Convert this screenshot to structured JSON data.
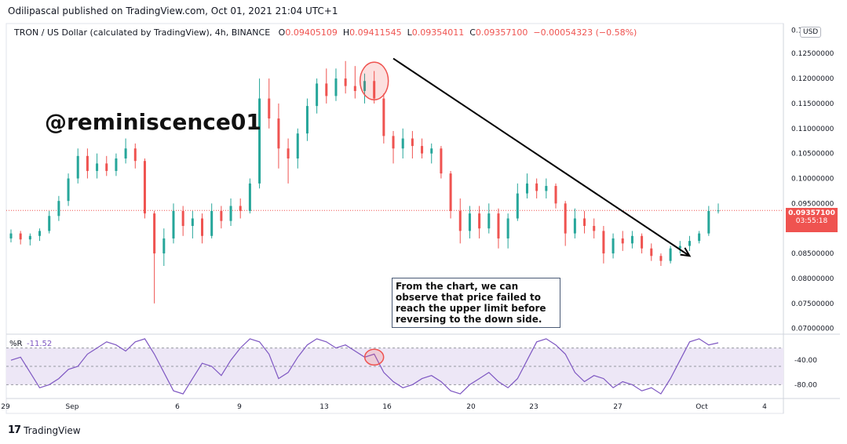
{
  "header": {
    "published_by": "Odilipascal published on TradingView.com, Oct 01, 2021 21:04 UTC+1"
  },
  "instrument": {
    "name": "TRON / US Dollar (calculated by TradingView), 4h, BINANCE",
    "open_label": "O",
    "open": "0.09405109",
    "high_label": "H",
    "high": "0.09411545",
    "low_label": "L",
    "low": "0.09354011",
    "close_label": "C",
    "close": "0.09357100",
    "change": "−0.00054323 (−0.58%)"
  },
  "watermark": "@reminiscence01",
  "annotation": "From the chart, we can observe that price failed to reach the upper limit before reversing to the down side.",
  "currency_badge": "USD",
  "last_price": {
    "price": "0.09357100",
    "countdown": "03:55:18"
  },
  "indicator": {
    "name": "%R",
    "value": "-11.52"
  },
  "footer": {
    "brand": "TradingView"
  },
  "colors": {
    "up": "#26a69a",
    "down": "#ef5350",
    "indicator_line": "#7e57c2",
    "indicator_band": "#ede7f6"
  },
  "chart_data": {
    "type": "candlestick",
    "symbol": "TRXUSD",
    "timeframe": "4h",
    "x_ticks": [
      "29",
      "Sep",
      "6",
      "9",
      "13",
      "16",
      "20",
      "23",
      "27",
      "Oct",
      "4"
    ],
    "y_ticks": [
      "0.12500000",
      "0.12000000",
      "0.11500000",
      "0.11000000",
      "0.10500000",
      "0.10000000",
      "0.09500000",
      "0.09000000",
      "0.08500000",
      "0.08000000",
      "0.07500000",
      "0.07000000"
    ],
    "top_tick_partial": "0.1",
    "ylim": [
      0.069,
      0.131
    ],
    "candles": [
      {
        "o": 0.088,
        "h": 0.0898,
        "l": 0.0872,
        "c": 0.089
      },
      {
        "o": 0.089,
        "h": 0.0895,
        "l": 0.0868,
        "c": 0.0878
      },
      {
        "o": 0.0878,
        "h": 0.089,
        "l": 0.0866,
        "c": 0.0885
      },
      {
        "o": 0.0885,
        "h": 0.09,
        "l": 0.0875,
        "c": 0.0895
      },
      {
        "o": 0.0895,
        "h": 0.0935,
        "l": 0.089,
        "c": 0.0925
      },
      {
        "o": 0.0925,
        "h": 0.0965,
        "l": 0.0915,
        "c": 0.0955
      },
      {
        "o": 0.0955,
        "h": 0.101,
        "l": 0.0945,
        "c": 0.1
      },
      {
        "o": 0.1,
        "h": 0.106,
        "l": 0.099,
        "c": 0.1045
      },
      {
        "o": 0.1045,
        "h": 0.106,
        "l": 0.1,
        "c": 0.1015
      },
      {
        "o": 0.1015,
        "h": 0.105,
        "l": 0.1,
        "c": 0.103
      },
      {
        "o": 0.103,
        "h": 0.1045,
        "l": 0.1005,
        "c": 0.1015
      },
      {
        "o": 0.1015,
        "h": 0.105,
        "l": 0.1005,
        "c": 0.104
      },
      {
        "o": 0.104,
        "h": 0.108,
        "l": 0.103,
        "c": 0.106
      },
      {
        "o": 0.106,
        "h": 0.107,
        "l": 0.102,
        "c": 0.1035
      },
      {
        "o": 0.1035,
        "h": 0.104,
        "l": 0.092,
        "c": 0.093
      },
      {
        "o": 0.093,
        "h": 0.0935,
        "l": 0.075,
        "c": 0.085
      },
      {
        "o": 0.085,
        "h": 0.09,
        "l": 0.0825,
        "c": 0.088
      },
      {
        "o": 0.088,
        "h": 0.095,
        "l": 0.087,
        "c": 0.0935
      },
      {
        "o": 0.0935,
        "h": 0.0945,
        "l": 0.0885,
        "c": 0.0905
      },
      {
        "o": 0.0905,
        "h": 0.0935,
        "l": 0.088,
        "c": 0.092
      },
      {
        "o": 0.092,
        "h": 0.093,
        "l": 0.087,
        "c": 0.0885
      },
      {
        "o": 0.0885,
        "h": 0.095,
        "l": 0.088,
        "c": 0.0935
      },
      {
        "o": 0.0935,
        "h": 0.0945,
        "l": 0.09,
        "c": 0.0915
      },
      {
        "o": 0.0915,
        "h": 0.096,
        "l": 0.0905,
        "c": 0.0945
      },
      {
        "o": 0.0945,
        "h": 0.096,
        "l": 0.092,
        "c": 0.0935
      },
      {
        "o": 0.0935,
        "h": 0.1,
        "l": 0.093,
        "c": 0.099
      },
      {
        "o": 0.099,
        "h": 0.12,
        "l": 0.098,
        "c": 0.116
      },
      {
        "o": 0.116,
        "h": 0.12,
        "l": 0.11,
        "c": 0.112
      },
      {
        "o": 0.112,
        "h": 0.115,
        "l": 0.102,
        "c": 0.106
      },
      {
        "o": 0.106,
        "h": 0.108,
        "l": 0.099,
        "c": 0.104
      },
      {
        "o": 0.104,
        "h": 0.11,
        "l": 0.102,
        "c": 0.109
      },
      {
        "o": 0.109,
        "h": 0.116,
        "l": 0.1075,
        "c": 0.1145
      },
      {
        "o": 0.1145,
        "h": 0.12,
        "l": 0.113,
        "c": 0.119
      },
      {
        "o": 0.119,
        "h": 0.122,
        "l": 0.115,
        "c": 0.1165
      },
      {
        "o": 0.1165,
        "h": 0.122,
        "l": 0.1155,
        "c": 0.12
      },
      {
        "o": 0.12,
        "h": 0.1235,
        "l": 0.117,
        "c": 0.1185
      },
      {
        "o": 0.1185,
        "h": 0.1225,
        "l": 0.116,
        "c": 0.1175
      },
      {
        "o": 0.1175,
        "h": 0.121,
        "l": 0.115,
        "c": 0.1195
      },
      {
        "o": 0.1195,
        "h": 0.1215,
        "l": 0.115,
        "c": 0.116
      },
      {
        "o": 0.116,
        "h": 0.117,
        "l": 0.107,
        "c": 0.1085
      },
      {
        "o": 0.1085,
        "h": 0.1095,
        "l": 0.103,
        "c": 0.106
      },
      {
        "o": 0.106,
        "h": 0.11,
        "l": 0.104,
        "c": 0.108
      },
      {
        "o": 0.108,
        "h": 0.1095,
        "l": 0.104,
        "c": 0.1065
      },
      {
        "o": 0.1065,
        "h": 0.108,
        "l": 0.104,
        "c": 0.105
      },
      {
        "o": 0.105,
        "h": 0.107,
        "l": 0.103,
        "c": 0.106
      },
      {
        "o": 0.106,
        "h": 0.1065,
        "l": 0.1,
        "c": 0.101
      },
      {
        "o": 0.101,
        "h": 0.1015,
        "l": 0.092,
        "c": 0.0935
      },
      {
        "o": 0.0935,
        "h": 0.096,
        "l": 0.087,
        "c": 0.0895
      },
      {
        "o": 0.0895,
        "h": 0.0945,
        "l": 0.088,
        "c": 0.093
      },
      {
        "o": 0.093,
        "h": 0.0945,
        "l": 0.088,
        "c": 0.09
      },
      {
        "o": 0.09,
        "h": 0.095,
        "l": 0.089,
        "c": 0.093
      },
      {
        "o": 0.093,
        "h": 0.094,
        "l": 0.086,
        "c": 0.088
      },
      {
        "o": 0.088,
        "h": 0.093,
        "l": 0.086,
        "c": 0.092
      },
      {
        "o": 0.092,
        "h": 0.099,
        "l": 0.0915,
        "c": 0.097
      },
      {
        "o": 0.097,
        "h": 0.101,
        "l": 0.096,
        "c": 0.099
      },
      {
        "o": 0.099,
        "h": 0.1,
        "l": 0.096,
        "c": 0.0975
      },
      {
        "o": 0.0975,
        "h": 0.1,
        "l": 0.096,
        "c": 0.0985
      },
      {
        "o": 0.0985,
        "h": 0.099,
        "l": 0.094,
        "c": 0.095
      },
      {
        "o": 0.095,
        "h": 0.0955,
        "l": 0.0865,
        "c": 0.089
      },
      {
        "o": 0.089,
        "h": 0.094,
        "l": 0.088,
        "c": 0.092
      },
      {
        "o": 0.092,
        "h": 0.0935,
        "l": 0.089,
        "c": 0.0905
      },
      {
        "o": 0.0905,
        "h": 0.092,
        "l": 0.088,
        "c": 0.0895
      },
      {
        "o": 0.0895,
        "h": 0.0905,
        "l": 0.083,
        "c": 0.085
      },
      {
        "o": 0.085,
        "h": 0.089,
        "l": 0.084,
        "c": 0.088
      },
      {
        "o": 0.088,
        "h": 0.0895,
        "l": 0.0855,
        "c": 0.087
      },
      {
        "o": 0.087,
        "h": 0.0895,
        "l": 0.086,
        "c": 0.0885
      },
      {
        "o": 0.0885,
        "h": 0.089,
        "l": 0.085,
        "c": 0.086
      },
      {
        "o": 0.086,
        "h": 0.087,
        "l": 0.0835,
        "c": 0.0845
      },
      {
        "o": 0.0845,
        "h": 0.085,
        "l": 0.0825,
        "c": 0.0835
      },
      {
        "o": 0.0835,
        "h": 0.0865,
        "l": 0.083,
        "c": 0.086
      },
      {
        "o": 0.086,
        "h": 0.0875,
        "l": 0.085,
        "c": 0.0865
      },
      {
        "o": 0.0865,
        "h": 0.0885,
        "l": 0.0855,
        "c": 0.0875
      },
      {
        "o": 0.0875,
        "h": 0.0895,
        "l": 0.087,
        "c": 0.089
      },
      {
        "o": 0.089,
        "h": 0.0945,
        "l": 0.0885,
        "c": 0.0935
      },
      {
        "o": 0.0935,
        "h": 0.095,
        "l": 0.093,
        "c": 0.0936
      }
    ],
    "indicator_series": {
      "name": "%R",
      "ylim": [
        -100,
        0
      ],
      "levels": [
        -20,
        -50,
        -80
      ],
      "tick_labels": [
        "-40.00",
        "-80.00"
      ],
      "values": [
        -40,
        -35,
        -60,
        -85,
        -80,
        -70,
        -55,
        -50,
        -30,
        -20,
        -10,
        -15,
        -25,
        -10,
        -5,
        -30,
        -60,
        -90,
        -95,
        -70,
        -45,
        -50,
        -65,
        -40,
        -20,
        -5,
        -10,
        -30,
        -70,
        -60,
        -35,
        -15,
        -5,
        -10,
        -20,
        -15,
        -25,
        -35,
        -30,
        -60,
        -75,
        -85,
        -80,
        -70,
        -65,
        -75,
        -90,
        -95,
        -80,
        -70,
        -60,
        -75,
        -85,
        -70,
        -40,
        -10,
        -5,
        -15,
        -30,
        -60,
        -75,
        -65,
        -70,
        -85,
        -75,
        -80,
        -90,
        -85,
        -95,
        -70,
        -40,
        -10,
        -5,
        -15,
        -11.52
      ]
    },
    "overlays": {
      "trend_arrow": {
        "from_index": 40,
        "from_price": 0.124,
        "to_index": 71,
        "to_price": 0.0845
      },
      "highlight_circle_price": {
        "index": 38,
        "price": 0.1195
      },
      "highlight_circle_indicator": {
        "index": 38,
        "value": -35
      }
    }
  }
}
